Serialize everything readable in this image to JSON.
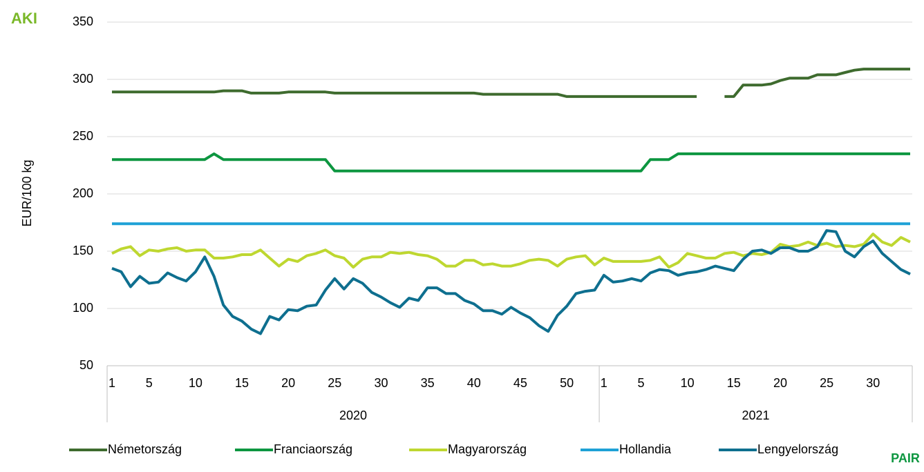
{
  "chart_data": {
    "type": "line",
    "y_label": "EUR/100 kg",
    "logo_top": "AKI",
    "logo_bottom": "PAIR",
    "x_groups": [
      "2020",
      "2021"
    ],
    "categories": [
      "1",
      null,
      null,
      null,
      "5",
      null,
      null,
      null,
      null,
      "10",
      null,
      null,
      null,
      null,
      "15",
      null,
      null,
      null,
      null,
      "20",
      null,
      null,
      null,
      null,
      "25",
      null,
      null,
      null,
      null,
      "30",
      null,
      null,
      null,
      null,
      "35",
      null,
      null,
      null,
      null,
      "40",
      null,
      null,
      null,
      null,
      "45",
      null,
      null,
      null,
      null,
      "50",
      null,
      null,
      null,
      "1",
      null,
      null,
      null,
      "5",
      null,
      null,
      null,
      null,
      "10",
      null,
      null,
      null,
      null,
      "15",
      null,
      null,
      null,
      null,
      "20",
      null,
      null,
      null,
      null,
      "25",
      null,
      null,
      null,
      null,
      "30",
      null,
      null,
      null,
      null
    ],
    "ylim": [
      50,
      350
    ],
    "yticks": [
      50,
      100,
      150,
      200,
      250,
      300,
      350
    ],
    "grid": true,
    "legend": "bottom",
    "series": [
      {
        "name": "Németország",
        "color": "#3e6b2e",
        "values": [
          289,
          289,
          289,
          289,
          289,
          289,
          289,
          289,
          289,
          289,
          289,
          289,
          290,
          290,
          290,
          288,
          288,
          288,
          288,
          289,
          289,
          289,
          289,
          289,
          288,
          288,
          288,
          288,
          288,
          288,
          288,
          288,
          288,
          288,
          288,
          288,
          288,
          288,
          288,
          288,
          287,
          287,
          287,
          287,
          287,
          287,
          287,
          287,
          287,
          285,
          285,
          285,
          285,
          285,
          285,
          285,
          285,
          285,
          285,
          285,
          285,
          285,
          285,
          285,
          null,
          null,
          285,
          285,
          295,
          295,
          295,
          296,
          299,
          301,
          301,
          301,
          304,
          304,
          304,
          306,
          308,
          309,
          309,
          309,
          309,
          309,
          309
        ]
      },
      {
        "name": "Franciaország",
        "color": "#0d9640",
        "values": [
          230,
          230,
          230,
          230,
          230,
          230,
          230,
          230,
          230,
          230,
          230,
          235,
          230,
          230,
          230,
          230,
          230,
          230,
          230,
          230,
          230,
          230,
          230,
          230,
          220,
          220,
          220,
          220,
          220,
          220,
          220,
          220,
          220,
          220,
          220,
          220,
          220,
          220,
          220,
          220,
          220,
          220,
          220,
          220,
          220,
          220,
          220,
          220,
          220,
          220,
          220,
          220,
          220,
          220,
          220,
          220,
          220,
          220,
          230,
          230,
          230,
          235,
          235,
          235,
          235,
          235,
          235,
          235,
          235,
          235,
          235,
          235,
          235,
          235,
          235,
          235,
          235,
          235,
          235,
          235,
          235,
          235,
          235,
          235,
          235,
          235,
          235
        ]
      },
      {
        "name": "Magyarország",
        "color": "#bed730",
        "values": [
          148,
          152,
          154,
          146,
          151,
          150,
          152,
          153,
          150,
          151,
          151,
          144,
          144,
          145,
          147,
          147,
          151,
          144,
          137,
          143,
          141,
          146,
          148,
          151,
          146,
          144,
          136,
          143,
          145,
          145,
          149,
          148,
          149,
          147,
          146,
          143,
          137,
          137,
          142,
          142,
          138,
          139,
          137,
          137,
          139,
          142,
          143,
          142,
          137,
          143,
          145,
          146,
          138,
          144,
          141,
          141,
          141,
          141,
          142,
          145,
          136,
          140,
          148,
          146,
          144,
          144,
          148,
          149,
          146,
          148,
          147,
          149,
          156,
          154,
          155,
          158,
          155,
          157,
          154,
          155,
          154,
          156,
          165,
          158,
          155,
          162,
          158
        ]
      },
      {
        "name": "Hollandia",
        "color": "#1ea1d6",
        "values": [
          174,
          174,
          174,
          174,
          174,
          174,
          174,
          174,
          174,
          174,
          174,
          174,
          174,
          174,
          174,
          174,
          174,
          174,
          174,
          174,
          174,
          174,
          174,
          174,
          174,
          174,
          174,
          174,
          174,
          174,
          174,
          174,
          174,
          174,
          174,
          174,
          174,
          174,
          174,
          174,
          174,
          174,
          174,
          174,
          174,
          174,
          174,
          174,
          174,
          174,
          174,
          174,
          174,
          174,
          174,
          174,
          174,
          174,
          174,
          174,
          174,
          174,
          174,
          174,
          174,
          174,
          174,
          174,
          174,
          174,
          174,
          174,
          174,
          174,
          174,
          174,
          174,
          174,
          174,
          174,
          174,
          174,
          174,
          174,
          174,
          174,
          174
        ]
      },
      {
        "name": "Lengyelország",
        "color": "#0e6f8f",
        "values": [
          135,
          132,
          119,
          128,
          122,
          123,
          131,
          127,
          124,
          132,
          145,
          128,
          103,
          93,
          89,
          82,
          78,
          93,
          90,
          99,
          98,
          102,
          103,
          116,
          126,
          117,
          126,
          122,
          114,
          110,
          105,
          101,
          109,
          107,
          118,
          118,
          113,
          113,
          107,
          104,
          98,
          98,
          95,
          101,
          96,
          92,
          85,
          80,
          94,
          102,
          113,
          115,
          116,
          129,
          123,
          124,
          126,
          124,
          131,
          134,
          133,
          129,
          131,
          132,
          134,
          137,
          135,
          133,
          143,
          150,
          151,
          148,
          153,
          153,
          150,
          150,
          154,
          168,
          167,
          150,
          145,
          154,
          159,
          148,
          141,
          134,
          130
        ]
      }
    ]
  }
}
